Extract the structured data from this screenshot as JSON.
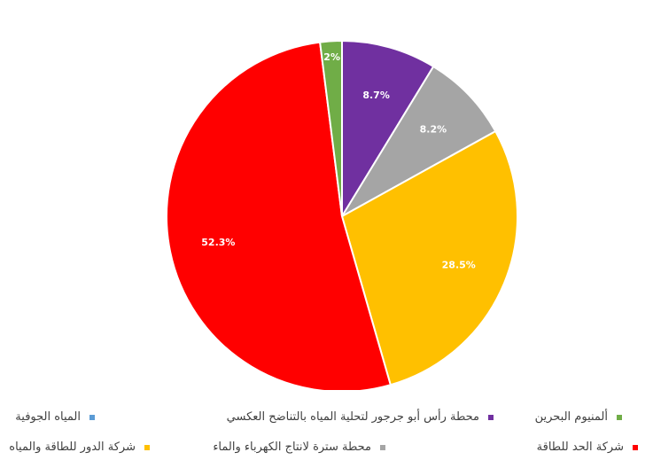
{
  "chart_data": {
    "type": "pie",
    "title": "",
    "slices": [
      {
        "name": "المياه الجوفية",
        "value": 0.0,
        "label": "",
        "color": "#5B9BD5"
      },
      {
        "name": "محطة رأس أبو جرجور لتحلية المياه بالتناضح العكسي",
        "value": 8.7,
        "label": "8.7%",
        "color": "#7030A0"
      },
      {
        "name": "محطة سترة لانتاج الكهرباء والماء",
        "value": 8.2,
        "label": "8.2%",
        "color": "#A5A5A5"
      },
      {
        "name": "شركة الدور للطاقة والمياه",
        "value": 28.5,
        "label": "28.5%",
        "color": "#FFC000"
      },
      {
        "name": "شركة الحد للطاقة",
        "value": 52.3,
        "label": "52.3%",
        "color": "#FF0000"
      },
      {
        "name": "ألمنيوم البحرين",
        "value": 2.0,
        "label": "2%",
        "color": "#70AD47"
      }
    ],
    "legend_position": "bottom"
  }
}
